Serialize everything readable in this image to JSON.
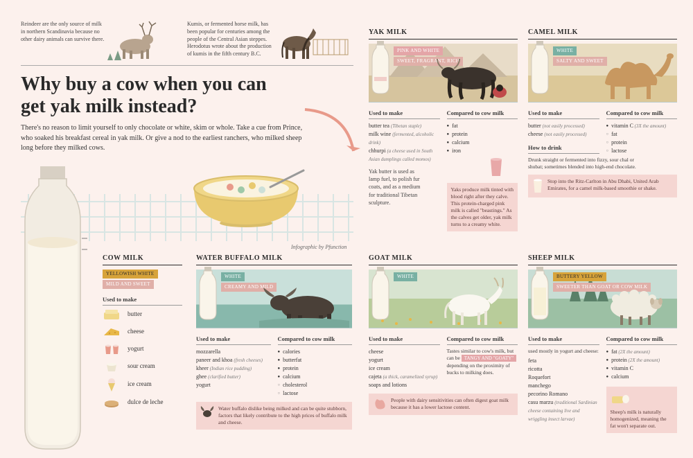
{
  "background_color": "#fcf1ed",
  "facts": {
    "reindeer": "Reindeer are the only source of milk in northern Scandinavia because no other dairy animals can survive there.",
    "kumis": "Kumis, or fermented horse milk, has been popular for centuries among the people of the Central Asian steppes. Herodotus wrote about the production of kumis in the fifth century B.C."
  },
  "title": "Why buy a cow when you can get yak milk instead?",
  "intro": "There's no reason to limit yourself to only chocolate or white, skim or whole. Take a cue from Prince, who soaked his breakfast cereal in yak milk. Or give a nod to the earliest ranchers, who milked sheep long before they milked cows.",
  "credit": "Infographic by Pfunction",
  "labels": {
    "used_to_make": "Used to make",
    "compared": "Compared to cow milk",
    "how_to_drink": "How to drink"
  },
  "tag_colors": {
    "pink": "#e4a5a7",
    "mustard": "#d7a33a",
    "teal": "#78b0a3",
    "default": "#e0afa8"
  },
  "cow": {
    "title": "COW MILK",
    "tags": [
      "YELLOWISH WHITE",
      "MILD AND SWEET"
    ],
    "products": [
      "butter",
      "cheese",
      "yogurt",
      "sour cream",
      "ice cream",
      "dulce de leche"
    ]
  },
  "buffalo": {
    "title": "WATER BUFFALO MILK",
    "tags": [
      "WHITE",
      "CREAMY AND MILD"
    ],
    "make": [
      {
        "t": "mozzarella"
      },
      {
        "t": "paneer and khoa",
        "n": "(fresh cheeses)"
      },
      {
        "t": "kheer",
        "n": "(Indian rice pudding)"
      },
      {
        "t": "ghee",
        "n": "(clarified butter)"
      },
      {
        "t": "yogurt"
      }
    ],
    "compare": [
      {
        "t": "calories",
        "more": true
      },
      {
        "t": "butterfat",
        "more": true
      },
      {
        "t": "protein",
        "more": true
      },
      {
        "t": "calcium",
        "more": true
      },
      {
        "t": "cholesterol",
        "more": false
      },
      {
        "t": "lactose",
        "more": false
      }
    ],
    "callout": "Water buffalo dislike being milked and can be quite stubborn, factors that likely contribute to the high prices of buffalo milk and cheese."
  },
  "yak": {
    "title": "YAK MILK",
    "tags": [
      "PINK AND WHITE",
      "SWEET, FRAGRANT, RICH"
    ],
    "make": [
      {
        "t": "butter tea",
        "n": "(Tibetan staple)"
      },
      {
        "t": "milk wine",
        "n": "(fermented, alcoholic drink)"
      },
      {
        "t": "chhurpi",
        "n": "(a cheese used in South Asian dumplings called momos)"
      }
    ],
    "note": "Yak butter is used as lamp fuel, to polish fur coats, and as a medium for traditional Tibetan sculpture.",
    "compare": [
      {
        "t": "fat",
        "more": true
      },
      {
        "t": "protein",
        "more": true
      },
      {
        "t": "calcium",
        "more": true
      },
      {
        "t": "iron",
        "more": true
      }
    ],
    "callout": "Yaks produce milk tinted with blood right after they calve. This protein-charged pink milk is called \"beastings.\" As the calves get older, yak milk turns to a creamy white."
  },
  "camel": {
    "title": "CAMEL MILK",
    "tags": [
      "WHITE",
      "SALTY AND SWEET"
    ],
    "make": [
      {
        "t": "butter",
        "n": "(not easily processed)"
      },
      {
        "t": "cheese",
        "n": "(not easily processed)"
      }
    ],
    "compare": [
      {
        "t": "vitamin C",
        "n": "(3X the amount)",
        "more": true
      },
      {
        "t": "fat",
        "more": false
      },
      {
        "t": "protein",
        "more": false
      },
      {
        "t": "lactose",
        "more": false
      }
    ],
    "drink": "Drunk straight or fermented into fizzy, sour chal or shubat; sometimes blended into high-end chocolate.",
    "callout": "Stop into the Ritz-Carlton in Abu Dhabi, United Arab Emirates, for a camel milk-based smoothie or shake."
  },
  "goat": {
    "title": "GOAT MILK",
    "tags": [
      "WHITE"
    ],
    "make": [
      {
        "t": "cheese"
      },
      {
        "t": "yogurt"
      },
      {
        "t": "ice cream"
      },
      {
        "t": "cajeta",
        "n": "(a thick, caramelized syrup)"
      },
      {
        "t": "soaps and lotions"
      }
    ],
    "compare_text_pre": "Tastes similar to cow's milk, but can be",
    "compare_tag": "TANGY AND \"GOATY\"",
    "compare_text_post": "depending on the proximity of bucks to milking does.",
    "callout": "People with dairy sensitivities can often digest goat milk because it has a lower lactose content."
  },
  "sheep": {
    "title": "SHEEP MILK",
    "tags": [
      "BUTTERY YELLOW",
      "SWEETER THAN GOAT OR COW MILK"
    ],
    "make_intro": "used mostly in yogurt and cheese:",
    "make": [
      {
        "t": "feta"
      },
      {
        "t": "ricotta"
      },
      {
        "t": "Roquefort"
      },
      {
        "t": "manchego"
      },
      {
        "t": "pecorino Romano"
      },
      {
        "t": "casu marzu",
        "n": "(traditional Sardinian cheese containing live and wriggling insect larvae)"
      }
    ],
    "compare": [
      {
        "t": "fat",
        "n": "(2X the amount)",
        "more": true
      },
      {
        "t": "protein",
        "n": "(2X the amount)",
        "more": true
      },
      {
        "t": "vitamin C",
        "more": true
      },
      {
        "t": "calcium",
        "more": true
      }
    ],
    "callout": "Sheep's milk is naturally homogenized, meaning the fat won't separate out."
  }
}
